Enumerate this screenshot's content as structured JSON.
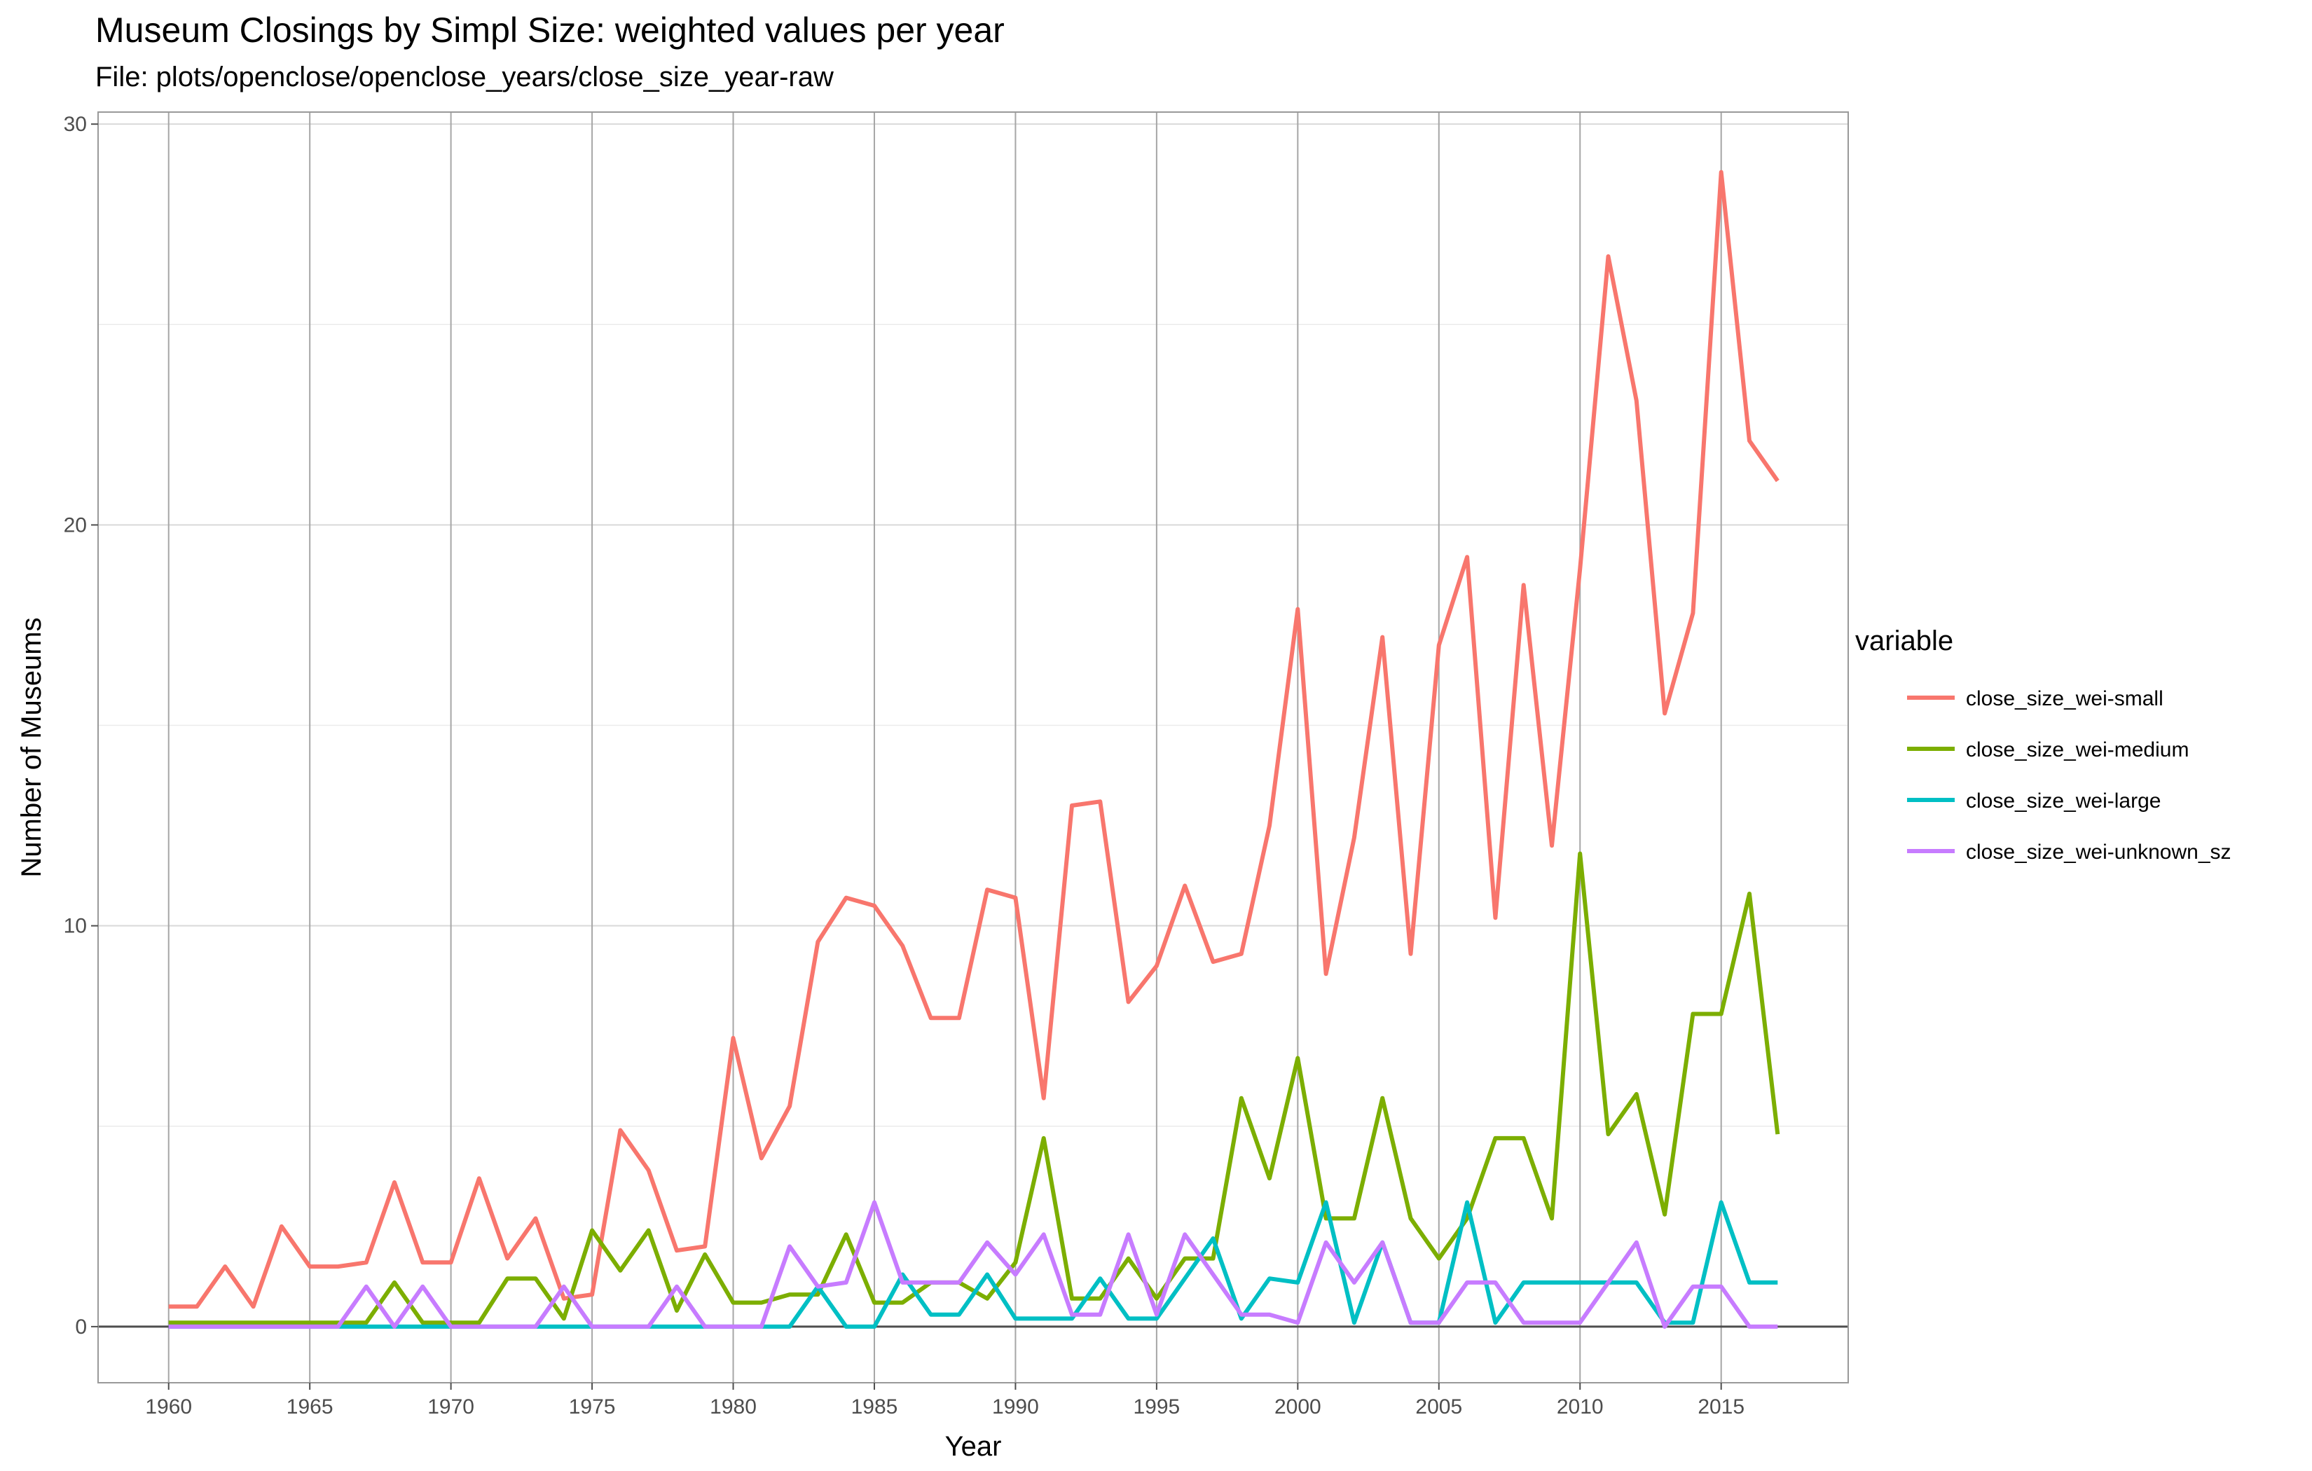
{
  "chart_data": {
    "type": "line",
    "title": "Museum Closings by Simpl Size: weighted values per year",
    "subtitle": "File: plots/openclose/openclose_years/close_size_year-raw",
    "xlabel": "Year",
    "ylabel": "Number of Museums",
    "xlim": [
      1957.5,
      2019.5
    ],
    "ylim": [
      -1.4,
      30.3
    ],
    "x_ticks": [
      1960,
      1965,
      1970,
      1975,
      1980,
      1985,
      1990,
      1995,
      2000,
      2005,
      2010,
      2015
    ],
    "y_ticks": [
      0,
      10,
      20,
      30
    ],
    "grid": true,
    "legend": {
      "title": "variable",
      "position": "right"
    },
    "x": [
      1960,
      1961,
      1962,
      1963,
      1964,
      1965,
      1966,
      1967,
      1968,
      1969,
      1970,
      1971,
      1972,
      1973,
      1974,
      1975,
      1976,
      1977,
      1978,
      1979,
      1980,
      1981,
      1982,
      1983,
      1984,
      1985,
      1986,
      1987,
      1988,
      1989,
      1990,
      1991,
      1992,
      1993,
      1994,
      1995,
      1996,
      1997,
      1998,
      1999,
      2000,
      2001,
      2002,
      2003,
      2004,
      2005,
      2006,
      2007,
      2008,
      2009,
      2010,
      2011,
      2012,
      2013,
      2014,
      2015,
      2016,
      2017
    ],
    "series": [
      {
        "name": "close_size_wei-small",
        "color": "#F8766D",
        "values": [
          0.5,
          0.5,
          1.5,
          0.5,
          2.5,
          1.5,
          1.5,
          1.6,
          3.6,
          1.6,
          1.6,
          3.7,
          1.7,
          2.7,
          0.7,
          0.8,
          4.9,
          3.9,
          1.9,
          2.0,
          7.2,
          4.2,
          5.5,
          9.6,
          10.7,
          10.5,
          9.5,
          7.7,
          7.7,
          10.9,
          10.7,
          5.7,
          13.0,
          13.1,
          8.1,
          9.0,
          11.0,
          9.1,
          9.3,
          12.5,
          17.9,
          8.8,
          12.2,
          17.2,
          9.3,
          17.0,
          19.2,
          10.2,
          18.5,
          12.0,
          18.9,
          26.7,
          23.1,
          15.3,
          17.8,
          28.8,
          22.1,
          21.1
        ]
      },
      {
        "name": "close_size_wei-medium",
        "color": "#7CAE00",
        "values": [
          0.1,
          0.1,
          0.1,
          0.1,
          0.1,
          0.1,
          0.1,
          0.1,
          1.1,
          0.1,
          0.1,
          0.1,
          1.2,
          1.2,
          0.2,
          2.4,
          1.4,
          2.4,
          0.4,
          1.8,
          0.6,
          0.6,
          0.8,
          0.8,
          2.3,
          0.6,
          0.6,
          1.1,
          1.1,
          0.7,
          1.6,
          4.7,
          0.7,
          0.7,
          1.7,
          0.7,
          1.7,
          1.7,
          5.7,
          3.7,
          6.7,
          2.7,
          2.7,
          5.7,
          2.7,
          1.7,
          2.7,
          4.7,
          4.7,
          2.7,
          11.8,
          4.8,
          5.8,
          2.8,
          7.8,
          7.8,
          10.8,
          4.8
        ]
      },
      {
        "name": "close_size_wei-large",
        "color": "#00BFC4",
        "values": [
          0,
          0,
          0,
          0,
          0,
          0,
          0,
          0,
          0,
          0,
          0,
          0,
          0,
          0,
          0,
          0,
          0,
          0,
          0,
          0,
          0,
          0,
          0,
          1.0,
          0,
          0,
          1.3,
          0.3,
          0.3,
          1.3,
          0.2,
          0.2,
          0.2,
          1.2,
          0.2,
          0.2,
          1.2,
          2.2,
          0.2,
          1.2,
          1.1,
          3.1,
          0.1,
          2.1,
          0.1,
          0.1,
          3.1,
          0.1,
          1.1,
          1.1,
          1.1,
          1.1,
          1.1,
          0.1,
          0.1,
          3.1,
          1.1,
          1.1
        ]
      },
      {
        "name": "close_size_wei-unknown_sz",
        "color": "#C77CFF",
        "values": [
          0,
          0,
          0,
          0,
          0,
          0,
          0,
          1.0,
          0,
          1.0,
          0,
          0,
          0,
          0,
          1.0,
          0,
          0,
          0,
          1.0,
          0,
          0,
          0,
          2.0,
          1.0,
          1.1,
          3.1,
          1.1,
          1.1,
          1.1,
          2.1,
          1.3,
          2.3,
          0.3,
          0.3,
          2.3,
          0.3,
          2.3,
          1.3,
          0.3,
          0.3,
          0.1,
          2.1,
          1.1,
          2.1,
          0.1,
          0.1,
          1.1,
          1.1,
          0.1,
          0.1,
          0.1,
          1.1,
          2.1,
          0,
          1.0,
          1.0,
          0,
          0
        ]
      }
    ]
  }
}
